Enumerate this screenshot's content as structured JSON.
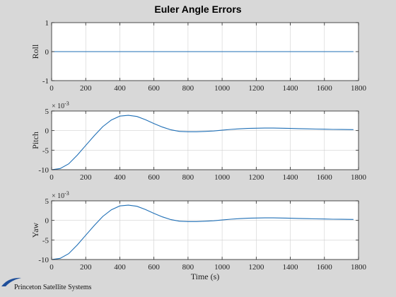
{
  "figure": {
    "title": "Euler Angle Errors",
    "logo_text": "Princeton Satellite Systems"
  },
  "colors": {
    "background": "#d8d8d8",
    "axes_bg": "#ffffff",
    "line": "#1f6fb6",
    "grid": "#d0d0d0"
  },
  "chart_data": [
    {
      "type": "line",
      "ylabel": "Roll",
      "xlabel": "",
      "xlim": [
        0,
        1800
      ],
      "ylim": [
        -1,
        1
      ],
      "xticks": [
        0,
        200,
        400,
        600,
        800,
        1000,
        1200,
        1400,
        1600,
        1800
      ],
      "yticks": [
        -1,
        0,
        1
      ],
      "ytick_labels": [
        "-1",
        "0",
        "1"
      ],
      "exponent_label": "",
      "grid": true,
      "series": [
        {
          "x": [
            0,
            200,
            400,
            600,
            800,
            1000,
            1200,
            1400,
            1600,
            1770
          ],
          "y": [
            0,
            0,
            0,
            0,
            0,
            0,
            0,
            0,
            0,
            0
          ]
        }
      ]
    },
    {
      "type": "line",
      "ylabel": "Pitch",
      "xlabel": "",
      "xlim": [
        0,
        1800
      ],
      "ylim": [
        -10,
        5
      ],
      "xticks": [
        0,
        200,
        400,
        600,
        800,
        1000,
        1200,
        1400,
        1600,
        1800
      ],
      "yticks": [
        -10,
        -5,
        0,
        5
      ],
      "ytick_labels": [
        "-10",
        "-5",
        "0",
        "5"
      ],
      "exponent_label": "× 10",
      "exponent_power": "-3",
      "grid": true,
      "series": [
        {
          "x": [
            0,
            50,
            100,
            150,
            200,
            250,
            300,
            350,
            400,
            450,
            500,
            550,
            600,
            650,
            700,
            750,
            800,
            850,
            900,
            950,
            1000,
            1050,
            1100,
            1150,
            1200,
            1250,
            1300,
            1350,
            1400,
            1450,
            1500,
            1550,
            1600,
            1650,
            1700,
            1770
          ],
          "y": [
            -10,
            -9.7,
            -8.5,
            -6.3,
            -3.8,
            -1.3,
            1.0,
            2.7,
            3.7,
            3.9,
            3.6,
            2.8,
            1.8,
            0.9,
            0.2,
            -0.2,
            -0.3,
            -0.3,
            -0.2,
            -0.1,
            0.1,
            0.3,
            0.45,
            0.55,
            0.6,
            0.65,
            0.65,
            0.6,
            0.55,
            0.5,
            0.45,
            0.4,
            0.35,
            0.3,
            0.28,
            0.25
          ]
        }
      ]
    },
    {
      "type": "line",
      "ylabel": "Yaw",
      "xlabel": "Time (s)",
      "xlim": [
        0,
        1800
      ],
      "ylim": [
        -10,
        5
      ],
      "xticks": [
        0,
        200,
        400,
        600,
        800,
        1000,
        1200,
        1400,
        1600,
        1800
      ],
      "yticks": [
        -10,
        -5,
        0,
        5
      ],
      "ytick_labels": [
        "-10",
        "-5",
        "0",
        "5"
      ],
      "exponent_label": "× 10",
      "exponent_power": "-3",
      "grid": true,
      "series": [
        {
          "x": [
            0,
            50,
            100,
            150,
            200,
            250,
            300,
            350,
            400,
            450,
            500,
            550,
            600,
            650,
            700,
            750,
            800,
            850,
            900,
            950,
            1000,
            1050,
            1100,
            1150,
            1200,
            1250,
            1300,
            1350,
            1400,
            1450,
            1500,
            1550,
            1600,
            1650,
            1700,
            1770
          ],
          "y": [
            -10,
            -9.7,
            -8.5,
            -6.3,
            -3.8,
            -1.3,
            1.0,
            2.7,
            3.7,
            3.9,
            3.6,
            2.8,
            1.8,
            0.9,
            0.2,
            -0.2,
            -0.3,
            -0.3,
            -0.2,
            -0.1,
            0.1,
            0.3,
            0.45,
            0.55,
            0.6,
            0.65,
            0.65,
            0.6,
            0.55,
            0.5,
            0.45,
            0.4,
            0.35,
            0.3,
            0.28,
            0.25
          ]
        }
      ]
    }
  ]
}
